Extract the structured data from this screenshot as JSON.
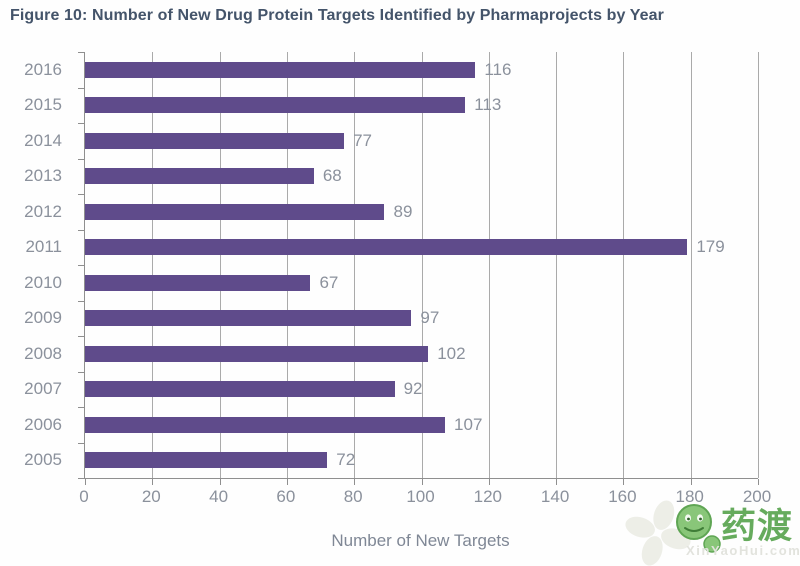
{
  "figure": {
    "title": "Figure 10: Number of New Drug Protein Targets Identified by Pharmaprojects by Year"
  },
  "chart_data": {
    "type": "bar",
    "orientation": "horizontal",
    "title": "Figure 10: Number of New Drug Protein Targets Identified by Pharmaprojects by Year",
    "categories": [
      "2016",
      "2015",
      "2014",
      "2013",
      "2012",
      "2011",
      "2010",
      "2009",
      "2008",
      "2007",
      "2006",
      "2005"
    ],
    "values": [
      116,
      113,
      77,
      68,
      89,
      179,
      67,
      97,
      102,
      92,
      107,
      72
    ],
    "xlabel": "Number of New Targets",
    "ylabel": "",
    "xlim": [
      0,
      200
    ],
    "xticks": [
      0,
      20,
      40,
      60,
      80,
      100,
      120,
      140,
      160,
      180,
      200
    ],
    "grid": "vertical-on",
    "legend": "none",
    "bar_color": "#5f4b8b",
    "label_color": "#8b919c",
    "title_color": "#44546a"
  },
  "watermark": {
    "logo_text": "药渡",
    "site_text": "XinYaoHui.com",
    "logo_green": "#56a34c"
  }
}
